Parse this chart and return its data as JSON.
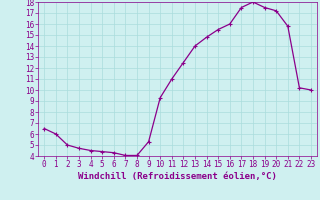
{
  "xlabel": "Windchill (Refroidissement éolien,°C)",
  "x": [
    0,
    1,
    2,
    3,
    4,
    5,
    6,
    7,
    8,
    9,
    10,
    11,
    12,
    13,
    14,
    15,
    16,
    17,
    18,
    19,
    20,
    21,
    22,
    23
  ],
  "y": [
    6.5,
    6.0,
    5.0,
    4.7,
    4.5,
    4.4,
    4.3,
    4.05,
    4.05,
    5.3,
    9.3,
    11.0,
    12.5,
    14.0,
    14.8,
    15.5,
    16.0,
    17.5,
    18.0,
    17.5,
    17.2,
    15.8,
    10.2,
    10.0
  ],
  "line_color": "#8B008B",
  "marker": "+",
  "marker_size": 3,
  "marker_lw": 0.8,
  "line_width": 0.9,
  "bg_color": "#cff0f0",
  "grid_color": "#aadddd",
  "ylim": [
    4,
    18
  ],
  "xlim": [
    -0.5,
    23.5
  ],
  "yticks": [
    4,
    5,
    6,
    7,
    8,
    9,
    10,
    11,
    12,
    13,
    14,
    15,
    16,
    17,
    18
  ],
  "xticks": [
    0,
    1,
    2,
    3,
    4,
    5,
    6,
    7,
    8,
    9,
    10,
    11,
    12,
    13,
    14,
    15,
    16,
    17,
    18,
    19,
    20,
    21,
    22,
    23
  ],
  "tick_color": "#8B008B",
  "label_color": "#8B008B",
  "axis_label_fontsize": 6.5,
  "tick_fontsize": 5.5
}
